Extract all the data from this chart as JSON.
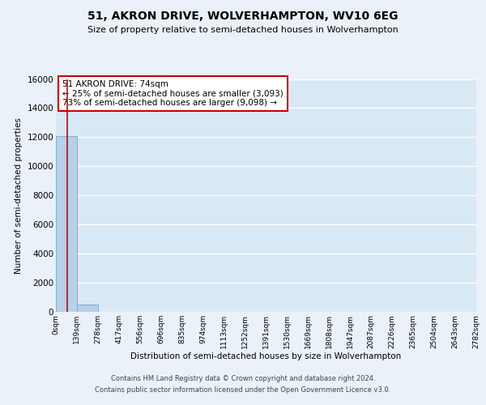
{
  "title": "51, AKRON DRIVE, WOLVERHAMPTON, WV10 6EG",
  "subtitle": "Size of property relative to semi-detached houses in Wolverhampton",
  "xlabel": "Distribution of semi-detached houses by size in Wolverhampton",
  "ylabel": "Number of semi-detached properties",
  "bin_edges": [
    0,
    139,
    278,
    417,
    556,
    696,
    835,
    974,
    1113,
    1252,
    1391,
    1530,
    1669,
    1808,
    1947,
    2087,
    2226,
    2365,
    2504,
    2643,
    2782
  ],
  "bar_heights": [
    12050,
    520,
    0,
    0,
    0,
    0,
    0,
    0,
    0,
    0,
    0,
    0,
    0,
    0,
    0,
    0,
    0,
    0,
    0,
    0
  ],
  "bar_color": "#b8d0e8",
  "bar_edge_color": "#7aafd4",
  "property_size": 74,
  "property_line_color": "#cc0000",
  "ylim": [
    0,
    16000
  ],
  "yticks": [
    0,
    2000,
    4000,
    6000,
    8000,
    10000,
    12000,
    14000,
    16000
  ],
  "xtick_labels": [
    "0sqm",
    "139sqm",
    "278sqm",
    "417sqm",
    "556sqm",
    "696sqm",
    "835sqm",
    "974sqm",
    "1113sqm",
    "1252sqm",
    "1391sqm",
    "1530sqm",
    "1669sqm",
    "1808sqm",
    "1947sqm",
    "2087sqm",
    "2226sqm",
    "2365sqm",
    "2504sqm",
    "2643sqm",
    "2782sqm"
  ],
  "annotation_title": "51 AKRON DRIVE: 74sqm",
  "annotation_line1": "← 25% of semi-detached houses are smaller (3,093)",
  "annotation_line2": "73% of semi-detached houses are larger (9,098) →",
  "annotation_box_color": "#ffffff",
  "annotation_box_edgecolor": "#cc0000",
  "footer1": "Contains HM Land Registry data © Crown copyright and database right 2024.",
  "footer2": "Contains public sector information licensed under the Open Government Licence v3.0.",
  "bg_color": "#eaf1f8",
  "plot_bg_color": "#d8e8f4",
  "grid_color": "#ffffff"
}
